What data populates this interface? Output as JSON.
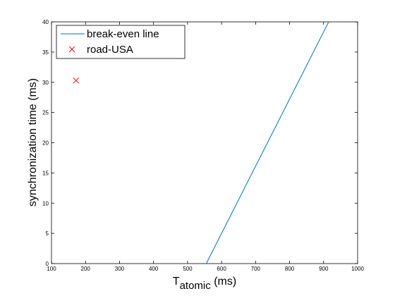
{
  "chart_data": {
    "type": "line",
    "xlabel_main": "T",
    "xlabel_sub": "atomic",
    "xlabel_unit": " (ms)",
    "ylabel": "synchronization time (ms)",
    "xlim": [
      100,
      1000
    ],
    "ylim": [
      0,
      40
    ],
    "xticks": [
      "100",
      "200",
      "300",
      "400",
      "500",
      "600",
      "700",
      "800",
      "900",
      "1000"
    ],
    "yticks": [
      "0",
      "5",
      "10",
      "15",
      "20",
      "25",
      "30",
      "35",
      "40"
    ],
    "grid": false,
    "legend_position": "top-left",
    "series": [
      {
        "name": "break-even line",
        "type": "line",
        "color": "#0072BD",
        "x": [
          555,
          915
        ],
        "y": [
          0,
          40
        ]
      },
      {
        "name": "road-USA",
        "type": "scatter",
        "marker": "x",
        "color": "#FF0000",
        "x": [
          172
        ],
        "y": [
          30.3
        ]
      }
    ]
  }
}
